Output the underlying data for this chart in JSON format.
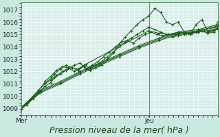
{
  "bg_color": "#c8e8e0",
  "plot_bg_color": "#d8eeea",
  "grid_color": "#ffffff",
  "line_color": "#1e5c1e",
  "ylim": [
    1008.5,
    1017.6
  ],
  "yticks": [
    1009,
    1010,
    1011,
    1012,
    1013,
    1014,
    1015,
    1016,
    1017
  ],
  "xlabel": "Pression niveau de la mer( hPa )",
  "xlabel_fontsize": 9,
  "tick_fontsize": 6.5,
  "x_labels": [
    "Mer",
    "Jeu"
  ],
  "vline_pos": 0.653,
  "vline_color": "#777777",
  "figsize": [
    3.2,
    2.0
  ],
  "dpi": 100,
  "series": [
    {
      "x": [
        0.0,
        0.03,
        0.06,
        0.09,
        0.12,
        0.15,
        0.17,
        0.2,
        0.23,
        0.26,
        0.29,
        0.32,
        0.35,
        0.38,
        0.41,
        0.44,
        0.47,
        0.5,
        0.53,
        0.56,
        0.59,
        0.62,
        0.65,
        0.68,
        0.71,
        0.74,
        0.77,
        0.8,
        0.83,
        0.86,
        0.89,
        0.92,
        0.95,
        0.98,
        1.0
      ],
      "y": [
        1009.0,
        1009.3,
        1009.8,
        1010.3,
        1010.8,
        1011.1,
        1011.5,
        1011.8,
        1012.1,
        1012.3,
        1012.2,
        1012.4,
        1012.1,
        1012.3,
        1012.5,
        1013.0,
        1013.5,
        1014.2,
        1014.8,
        1015.3,
        1015.8,
        1016.2,
        1016.5,
        1017.1,
        1016.8,
        1016.0,
        1015.8,
        1016.0,
        1015.2,
        1015.0,
        1015.8,
        1016.2,
        1015.2,
        1015.3,
        1016.0
      ]
    },
    {
      "x": [
        0.0,
        0.03,
        0.06,
        0.09,
        0.12,
        0.15,
        0.17,
        0.2,
        0.23,
        0.26,
        0.29,
        0.32,
        0.35,
        0.38,
        0.41,
        0.44,
        0.47,
        0.5,
        0.53,
        0.56,
        0.59,
        0.62,
        0.65,
        0.68,
        0.71,
        0.74,
        0.77,
        0.8,
        0.83,
        0.86,
        0.89,
        0.92,
        0.95,
        0.98,
        1.0
      ],
      "y": [
        1009.0,
        1009.5,
        1010.0,
        1010.5,
        1011.1,
        1011.4,
        1011.8,
        1012.2,
        1012.5,
        1012.3,
        1012.1,
        1012.5,
        1012.3,
        1012.5,
        1012.8,
        1013.2,
        1013.6,
        1014.0,
        1014.4,
        1014.7,
        1015.0,
        1015.3,
        1015.6,
        1015.4,
        1015.2,
        1015.0,
        1014.8,
        1014.9,
        1015.0,
        1015.1,
        1015.2,
        1015.3,
        1015.1,
        1015.2,
        1015.5
      ]
    },
    {
      "x": [
        0.0,
        0.1,
        0.2,
        0.3,
        0.4,
        0.5,
        0.6,
        0.7,
        0.8,
        0.9,
        1.0
      ],
      "y": [
        1009.0,
        1010.3,
        1011.0,
        1011.8,
        1012.5,
        1013.2,
        1013.9,
        1014.5,
        1015.0,
        1015.3,
        1015.6
      ]
    },
    {
      "x": [
        0.0,
        0.1,
        0.2,
        0.3,
        0.4,
        0.5,
        0.6,
        0.7,
        0.8,
        0.9,
        1.0
      ],
      "y": [
        1009.0,
        1010.4,
        1011.1,
        1011.9,
        1012.6,
        1013.3,
        1014.0,
        1014.6,
        1015.1,
        1015.3,
        1015.7
      ]
    },
    {
      "x": [
        0.0,
        0.1,
        0.2,
        0.3,
        0.4,
        0.5,
        0.6,
        0.7,
        0.8,
        0.9,
        1.0
      ],
      "y": [
        1009.1,
        1010.5,
        1011.2,
        1012.0,
        1012.7,
        1013.4,
        1014.1,
        1014.7,
        1015.2,
        1015.4,
        1015.8
      ]
    },
    {
      "x": [
        0.0,
        0.03,
        0.06,
        0.09,
        0.12,
        0.15,
        0.18,
        0.21,
        0.24,
        0.27,
        0.3,
        0.33,
        0.36,
        0.39,
        0.42,
        0.45,
        0.48,
        0.51,
        0.54,
        0.57,
        0.6,
        0.63,
        0.66,
        0.69,
        0.72,
        0.75,
        0.78,
        0.81,
        0.84,
        0.87,
        0.9,
        0.93,
        0.96,
        1.0
      ],
      "y": [
        1009.0,
        1009.4,
        1009.9,
        1010.5,
        1011.0,
        1011.3,
        1011.7,
        1012.0,
        1012.3,
        1012.5,
        1012.7,
        1012.2,
        1012.5,
        1012.8,
        1013.2,
        1013.6,
        1014.0,
        1014.4,
        1014.5,
        1014.3,
        1014.7,
        1015.0,
        1015.2,
        1015.0,
        1014.9,
        1015.0,
        1015.1,
        1015.2,
        1015.1,
        1015.1,
        1015.2,
        1015.3,
        1015.3,
        1015.4
      ]
    },
    {
      "x": [
        0.12,
        0.15,
        0.18,
        0.21,
        0.24,
        0.27,
        0.3,
        0.33,
        0.65,
        0.7,
        0.75,
        0.8,
        0.85,
        0.9,
        0.95,
        1.0
      ],
      "y": [
        1011.2,
        1011.6,
        1012.1,
        1012.4,
        1012.3,
        1012.0,
        1012.3,
        1012.6,
        1015.3,
        1015.1,
        1015.0,
        1015.0,
        1015.1,
        1015.2,
        1015.3,
        1015.5
      ]
    }
  ]
}
